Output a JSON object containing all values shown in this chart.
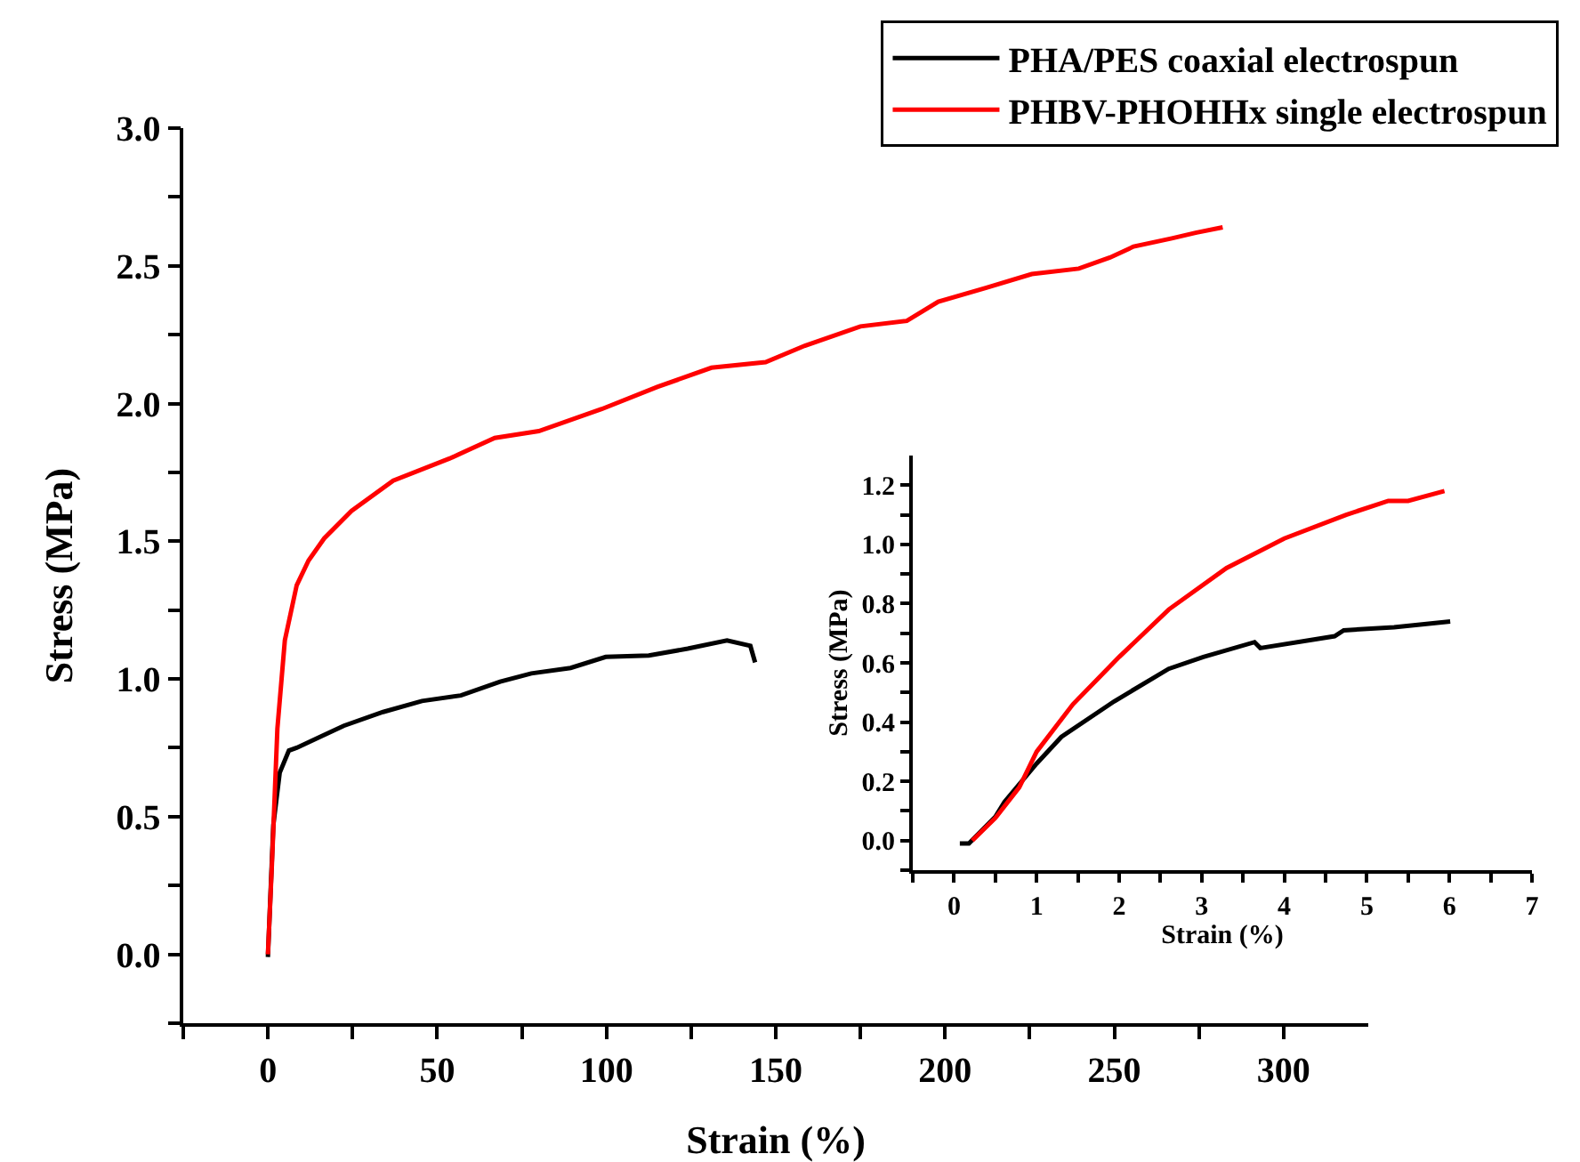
{
  "chart_data": [
    {
      "type": "line",
      "xlabel": "Strain (%)",
      "ylabel": "Stress (MPa)",
      "xlim": [
        -25,
        325
      ],
      "ylim": [
        -0.25,
        3.0
      ],
      "xticks": [
        {
          "value": -25,
          "label": null
        },
        0,
        {
          "value": 25,
          "label": null
        },
        50,
        {
          "value": 75,
          "label": null
        },
        100,
        {
          "value": 125,
          "label": null
        },
        150,
        {
          "value": 175,
          "label": null
        },
        200,
        {
          "value": 225,
          "label": null
        },
        250,
        {
          "value": 275,
          "label": null
        },
        300
      ],
      "yticks": [
        {
          "value": -0.25,
          "label": null
        },
        {
          "value": 0,
          "label": "0.0"
        },
        {
          "value": 0.25,
          "label": null
        },
        0.5,
        {
          "value": 0.75,
          "label": null
        },
        {
          "value": 1,
          "label": "1.0"
        },
        {
          "value": 1.25,
          "label": null
        },
        1.5,
        {
          "value": 1.75,
          "label": null
        },
        {
          "value": 2,
          "label": "2.0"
        },
        {
          "value": 2.25,
          "label": null
        },
        2.5,
        {
          "value": 2.75,
          "label": null
        },
        {
          "value": 3,
          "label": "3.0"
        }
      ],
      "grid": false,
      "legend": "top right",
      "marker": "none",
      "line_style": "solid",
      "series": [
        {
          "name": "PHA/PES coaxial electrospun",
          "color": "#000000",
          "x": [
            0,
            1.6,
            3.5,
            6.2,
            8.5,
            15.5,
            22.4,
            34,
            45.5,
            57,
            68.6,
            77.8,
            89.4,
            99.8,
            112.5,
            124,
            135.6,
            142.5,
            143.9
          ],
          "values": [
            -0.01,
            0.47,
            0.66,
            0.74,
            0.75,
            0.79,
            0.83,
            0.88,
            0.92,
            0.94,
            0.99,
            1.02,
            1.04,
            1.08,
            1.085,
            1.11,
            1.14,
            1.12,
            1.06
          ]
        },
        {
          "name": "PHBV-PHOHHx single electrospun",
          "color": "#ff0000",
          "x": [
            0,
            1.2,
            2.8,
            5,
            8.5,
            12,
            16.6,
            24.7,
            37,
            53.6,
            67,
            80,
            98.6,
            115,
            131,
            147,
            158.6,
            175,
            188.7,
            198,
            212,
            225.6,
            239.5,
            248.7,
            255.7,
            267,
            274,
            282
          ],
          "values": [
            0,
            0.33,
            0.82,
            1.14,
            1.34,
            1.43,
            1.51,
            1.61,
            1.72,
            1.8,
            1.875,
            1.9,
            1.98,
            2.06,
            2.13,
            2.15,
            2.21,
            2.28,
            2.3,
            2.37,
            2.42,
            2.47,
            2.49,
            2.53,
            2.57,
            2.6,
            2.62,
            2.64
          ]
        }
      ]
    },
    {
      "type": "line",
      "xlabel": "Strain (%)",
      "ylabel": "Stress (MPa)",
      "xlim": [
        -0.5,
        7
      ],
      "ylim": [
        -0.1,
        1.3
      ],
      "xticks": [
        {
          "value": -0.5,
          "label": null
        },
        0,
        {
          "value": 0.5,
          "label": null
        },
        1,
        {
          "value": 1.5,
          "label": null
        },
        2,
        {
          "value": 2.5,
          "label": null
        },
        3,
        {
          "value": 3.5,
          "label": null
        },
        4,
        {
          "value": 4.5,
          "label": null
        },
        5,
        {
          "value": 5.5,
          "label": null
        },
        6,
        {
          "value": 6.5,
          "label": null
        },
        7
      ],
      "yticks": [
        {
          "value": -0.1,
          "label": null
        },
        {
          "value": 0,
          "label": "0.0"
        },
        {
          "value": 0.1,
          "label": null
        },
        0.2,
        {
          "value": 0.3,
          "label": null
        },
        0.4,
        {
          "value": 0.5,
          "label": null
        },
        0.6,
        {
          "value": 0.7,
          "label": null
        },
        0.8,
        {
          "value": 0.9,
          "label": null
        },
        {
          "value": 1,
          "label": "1.0"
        },
        {
          "value": 1.1,
          "label": null
        },
        1.2
      ],
      "grid": false,
      "legend": false,
      "marker": "none",
      "line_style": "solid",
      "series": [
        {
          "color": "#000000",
          "x": [
            0.07,
            0.18,
            0.5,
            0.61,
            1,
            1.3,
            1.94,
            2.6,
            3.02,
            3.64,
            3.71,
            4.61,
            4.72,
            5.33,
            6.01
          ],
          "values": [
            -0.01,
            -0.01,
            0.08,
            0.13,
            0.26,
            0.35,
            0.47,
            0.58,
            0.62,
            0.67,
            0.65,
            0.69,
            0.71,
            0.72,
            0.74
          ]
        },
        {
          "color": "#ff0000",
          "x": [
            0.22,
            0.5,
            0.79,
            1,
            1.44,
            2,
            2.6,
            3.3,
            4,
            4.75,
            5.26,
            5.5,
            5.94
          ],
          "values": [
            0,
            0.076,
            0.18,
            0.3,
            0.46,
            0.62,
            0.78,
            0.92,
            1.02,
            1.1,
            1.147,
            1.147,
            1.18
          ]
        }
      ]
    }
  ]
}
